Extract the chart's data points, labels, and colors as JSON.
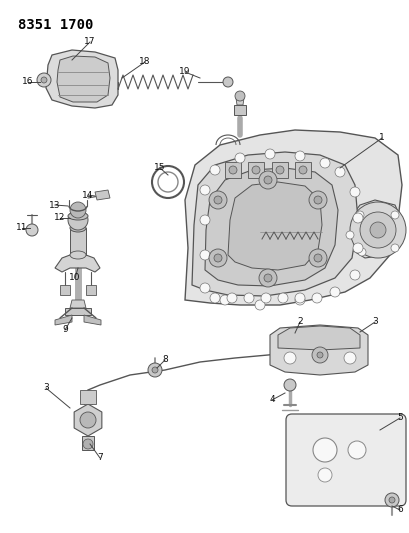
{
  "title": "8351 1700",
  "bg_color": "#ffffff",
  "line_color": "#555555",
  "fig_width": 4.1,
  "fig_height": 5.33,
  "dpi": 100
}
